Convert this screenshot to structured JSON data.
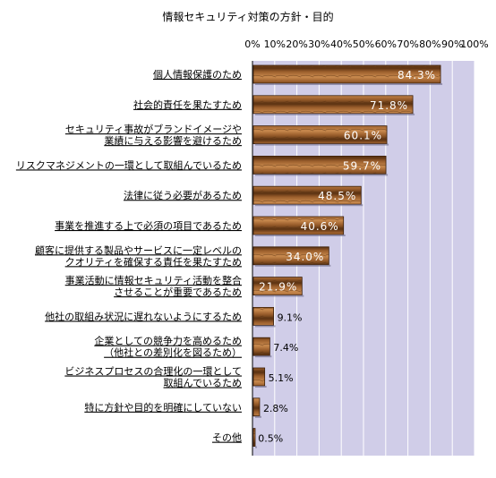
{
  "chart_data": {
    "type": "bar",
    "orientation": "horizontal",
    "title": "情報セキュリティ対策の方針・目的",
    "categories": [
      [
        "個人情報保護のため"
      ],
      [
        "社会的責任を果たすため"
      ],
      [
        "セキュリティ事故がブランドイメージや",
        "業績に与える影響を避けるため"
      ],
      [
        "リスクマネジメントの一環として取組んでいるため"
      ],
      [
        "法律に従う必要があるため"
      ],
      [
        "事業を推進する上で必須の項目であるため"
      ],
      [
        "顧客に提供する製品やサービスに一定レベルの",
        "クオリティを確保する責任を果たすため"
      ],
      [
        "事業活動に情報セキュリティ活動を整合",
        "させることが重要であるため"
      ],
      [
        "他社の取組み状況に遅れないようにするため"
      ],
      [
        "企業としての競争力を高めるため",
        "（他社との差別化を図るため）"
      ],
      [
        "ビジネスプロセスの合理化の一環として",
        "取組んでいるため"
      ],
      [
        "特に方針や目的を明確にしていない"
      ],
      [
        "その他"
      ]
    ],
    "values": [
      84.3,
      71.8,
      60.1,
      59.7,
      48.5,
      40.6,
      34.0,
      21.9,
      9.1,
      7.4,
      5.1,
      2.8,
      0.5
    ],
    "value_labels": [
      "84.3%",
      "71.8%",
      "60.1%",
      "59.7%",
      "48.5%",
      "40.6%",
      "34.0%",
      "21.9%",
      "9.1%",
      "7.4%",
      "5.1%",
      "2.8%",
      "0.5%"
    ],
    "xlim": [
      0,
      100
    ],
    "xticks": [
      "0%",
      "10%",
      "20%",
      "30%",
      "40%",
      "50%",
      "60%",
      "70%",
      "80%",
      "90%",
      "100%"
    ],
    "grid": true,
    "colors": {
      "plot_background": "#d0cde8",
      "bar_dark": "#5a3212",
      "bar_mid": "#9a5e2c",
      "bar_light": "#c98a4e",
      "label_inside": "#ffffff",
      "label_outside": "#000000"
    }
  }
}
